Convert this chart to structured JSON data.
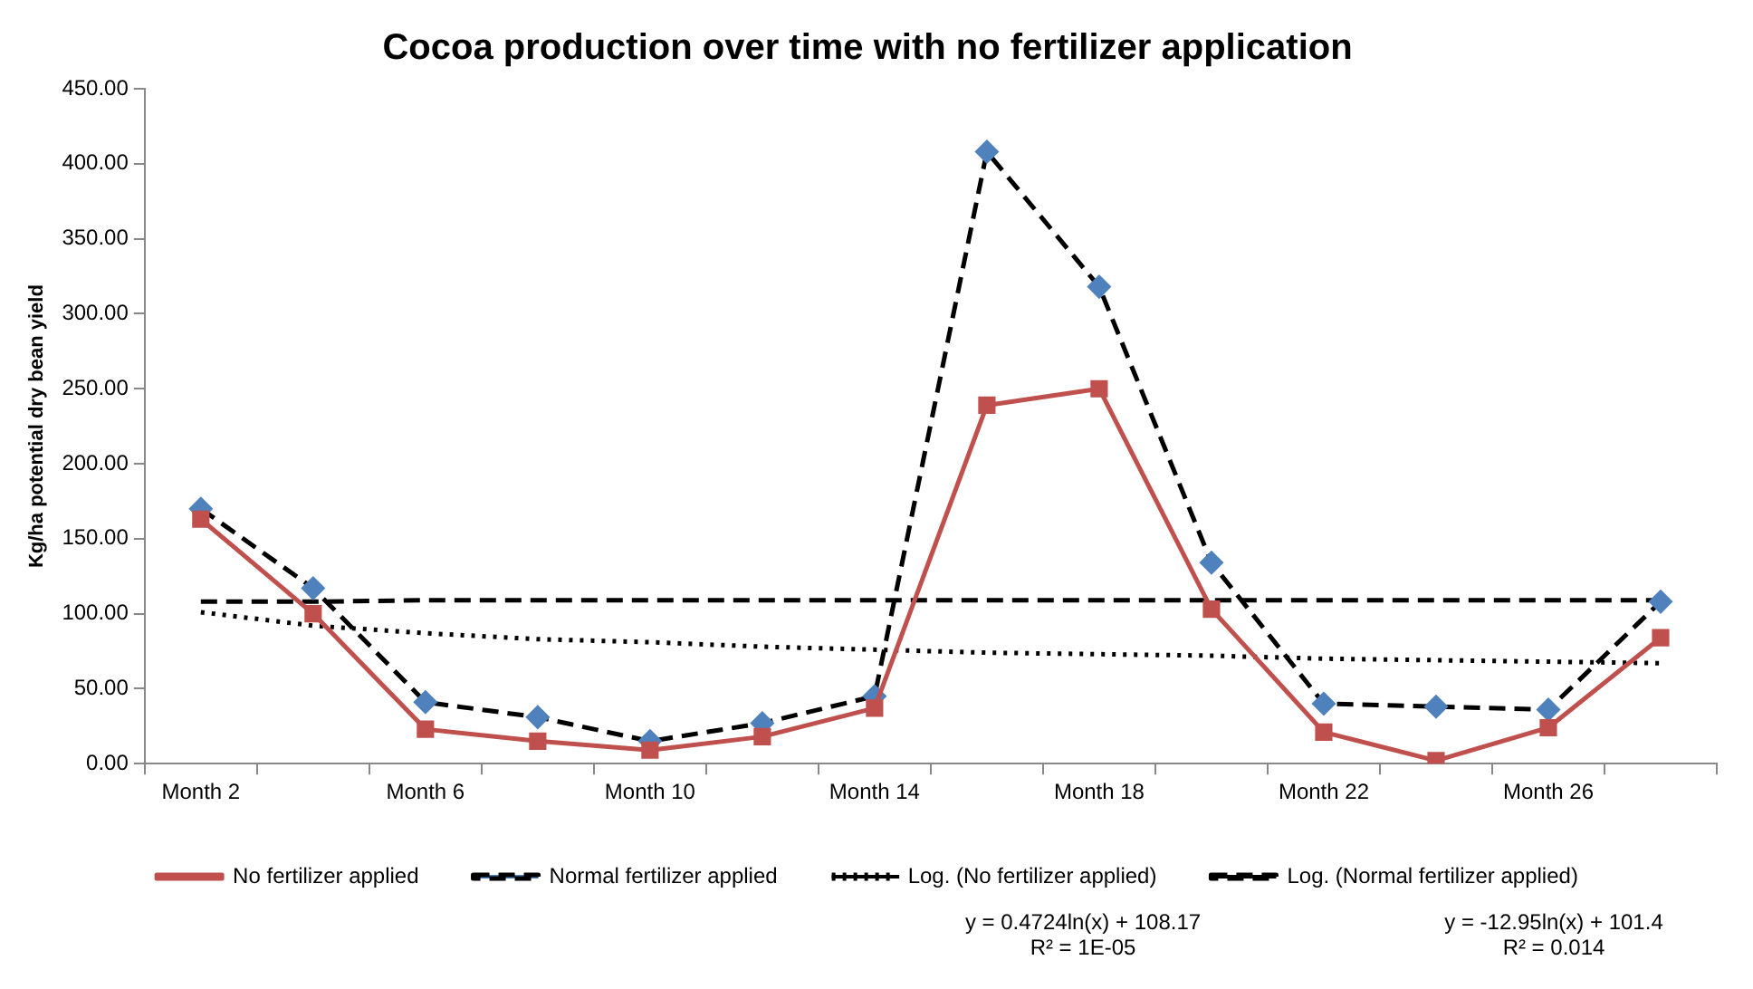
{
  "chart_data": {
    "type": "line",
    "title": "Cocoa production over time with no fertilizer application",
    "ylabel": "Kg/ha potential dry bean yield",
    "categories": [
      "Month 2",
      null,
      "Month 6",
      null,
      "Month 10",
      null,
      "Month 14",
      null,
      "Month 18",
      null,
      "Month 22",
      null,
      "Month 26",
      null
    ],
    "series": [
      {
        "name": "No fertilizer applied",
        "color": "#c0504d",
        "marker": "square",
        "line_style": "solid",
        "values": [
          163,
          100,
          23,
          15,
          9,
          18,
          37,
          239,
          250,
          103,
          21,
          2,
          24,
          84
        ]
      },
      {
        "name": "Normal fertilizer applied",
        "color": "#000000",
        "colors": [
          "#4f81bd",
          "#4f81bd",
          "#4f81bd",
          "#4f81bd",
          "#4f81bd",
          "#4f81bd",
          "#4f81bd",
          "#4f81bd",
          "#4f81bd",
          "#4f81bd",
          "#4f81bd",
          "#4f81bd",
          "#4f81bd",
          "#4f81bd"
        ],
        "marker": "diamond",
        "line_style": "dashed",
        "values": [
          170,
          117,
          41,
          31,
          15,
          27,
          45,
          408,
          318,
          134,
          40,
          38,
          36,
          108
        ]
      },
      {
        "name": "Log. (No fertilizer applied)",
        "color": "#000000",
        "marker": "none",
        "line_style": "dotted",
        "values": [
          101,
          92,
          87,
          83,
          81,
          78,
          76,
          74,
          73,
          72,
          70,
          69,
          68,
          67
        ]
      },
      {
        "name": "Log. (Normal fertilizer applied)",
        "color": "#000000",
        "marker": "none",
        "line_style": "dashed",
        "values": [
          108,
          108,
          109,
          109,
          109,
          109,
          109,
          109,
          109,
          109,
          109,
          109,
          109,
          109
        ]
      }
    ],
    "ylim": [
      0,
      450
    ],
    "yticks": [
      {
        "value": 0,
        "label": "0.00"
      },
      {
        "value": 50,
        "label": "50.00"
      },
      {
        "value": 100,
        "label": "100.00"
      },
      {
        "value": 150,
        "label": "150.00"
      },
      {
        "value": 200,
        "label": "200.00"
      },
      {
        "value": 250,
        "label": "250.00"
      },
      {
        "value": 300,
        "label": "300.00"
      },
      {
        "value": 350,
        "label": "350.00"
      },
      {
        "value": 400,
        "label": "400.00"
      },
      {
        "value": 450,
        "label": "450.00"
      }
    ],
    "grid": false,
    "legend": "bottom",
    "annotations": [
      "y = 0.4724ln(x) + 108.17\nR² = 1E-05",
      "y = -12.95ln(x) + 101.4\nR² = 0.014"
    ]
  }
}
